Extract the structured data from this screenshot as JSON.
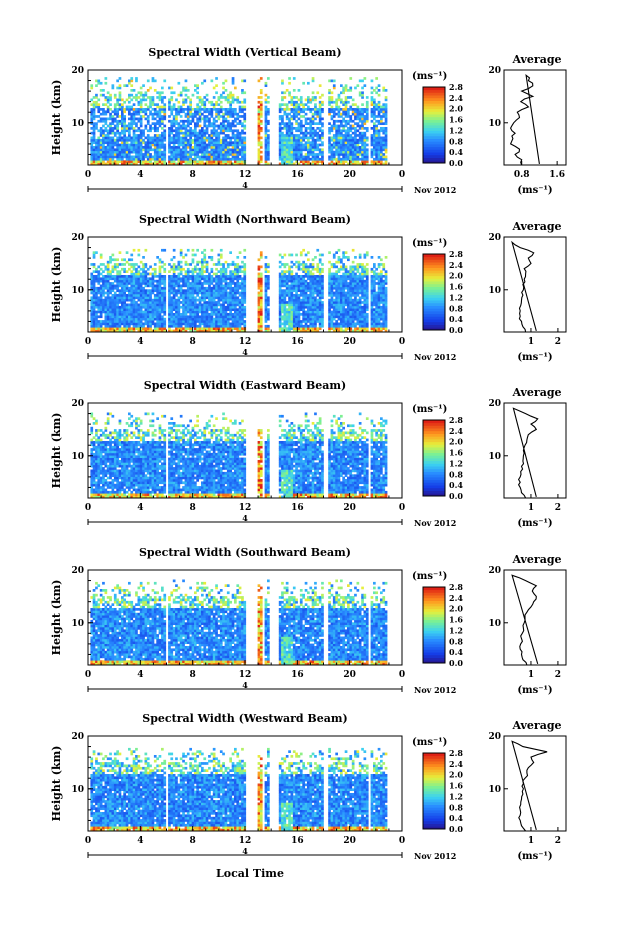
{
  "figure": {
    "xlabel": "Local Time",
    "date_label": "Nov 2012",
    "day_label": "4",
    "colorbar_unit": "(ms⁻¹)",
    "avg_title": "Average",
    "avg_unit": "(ms⁻¹)"
  },
  "chart_data": [
    {
      "type": "heatmap",
      "title": "Spectral Width (Vertical Beam)",
      "ylabel": "Height (km)",
      "xlim": [
        0,
        24
      ],
      "ylim": [
        2,
        20
      ],
      "xticks": [
        "0",
        "4",
        "8",
        "12",
        "16",
        "20",
        "0"
      ],
      "yticks": [
        "20",
        "10"
      ],
      "data_gaps_hours": [
        [
          0,
          0.1
        ],
        [
          5.8,
          5.95
        ],
        [
          11.9,
          12.9
        ],
        [
          13.3,
          13.4
        ],
        [
          13.8,
          14.4
        ],
        [
          17.9,
          18.2
        ],
        [
          21.3,
          21.5
        ],
        [
          22.7,
          24
        ]
      ],
      "top_of_data_km": 18.5,
      "colorbar": {
        "ticks": [
          "2.8",
          "2.4",
          "2.0",
          "1.6",
          "1.2",
          "0.8",
          "0.4",
          "0.0"
        ],
        "range": [
          0,
          2.8
        ]
      },
      "average": {
        "title": "Average",
        "xticks": [
          "0.8",
          "1.6"
        ],
        "xlim": [
          0.4,
          1.8
        ],
        "ylim": [
          2,
          20
        ],
        "height_km": [
          2,
          3,
          4,
          5,
          6,
          7,
          8,
          9,
          10,
          11,
          12,
          13,
          14,
          15,
          16,
          17,
          18,
          19
        ],
        "width_ms": [
          0.8,
          0.8,
          0.65,
          0.75,
          0.55,
          0.6,
          0.65,
          0.55,
          0.62,
          0.75,
          0.7,
          0.95,
          0.78,
          1.05,
          0.8,
          1.05,
          0.95,
          0.9
        ]
      }
    },
    {
      "type": "heatmap",
      "title": "Spectral Width (Northward Beam)",
      "ylabel": "Height (km)",
      "xlim": [
        0,
        24
      ],
      "ylim": [
        2,
        20
      ],
      "xticks": [
        "0",
        "4",
        "8",
        "12",
        "16",
        "20",
        "0"
      ],
      "yticks": [
        "20",
        "10"
      ],
      "data_gaps_hours": [
        [
          0,
          0.1
        ],
        [
          5.8,
          5.95
        ],
        [
          11.9,
          12.9
        ],
        [
          13.3,
          13.4
        ],
        [
          13.8,
          14.4
        ],
        [
          17.9,
          18.2
        ],
        [
          21.3,
          21.5
        ],
        [
          22.7,
          24
        ]
      ],
      "top_of_data_km": 17.5,
      "colorbar": {
        "ticks": [
          "2.8",
          "2.4",
          "2.0",
          "1.6",
          "1.2",
          "0.8",
          "0.4",
          "0.0"
        ],
        "range": [
          0,
          2.8
        ]
      },
      "average": {
        "title": "Average",
        "xticks": [
          "1",
          "2"
        ],
        "xlim": [
          0,
          2.3
        ],
        "ylim": [
          2,
          20
        ],
        "height_km": [
          2,
          3,
          4,
          5,
          6,
          7,
          8,
          9,
          10,
          11,
          12,
          13,
          14,
          15,
          16,
          17,
          18,
          19
        ],
        "width_ms": [
          0.8,
          0.7,
          0.65,
          0.6,
          0.6,
          0.62,
          0.65,
          0.7,
          0.72,
          0.7,
          0.75,
          0.8,
          0.75,
          1.0,
          0.9,
          1.1,
          0.6,
          0.3
        ]
      }
    },
    {
      "type": "heatmap",
      "title": "Spectral Width (Eastward Beam)",
      "ylabel": "Height (km)",
      "xlim": [
        0,
        24
      ],
      "ylim": [
        2,
        20
      ],
      "xticks": [
        "0",
        "4",
        "8",
        "12",
        "16",
        "20",
        "0"
      ],
      "yticks": [
        "20",
        "10"
      ],
      "data_gaps_hours": [
        [
          0,
          0.1
        ],
        [
          5.8,
          5.95
        ],
        [
          11.9,
          12.9
        ],
        [
          13.3,
          13.4
        ],
        [
          13.8,
          14.4
        ],
        [
          17.9,
          18.2
        ],
        [
          21.3,
          21.5
        ],
        [
          22.7,
          24
        ]
      ],
      "top_of_data_km": 18.0,
      "colorbar": {
        "ticks": [
          "2.8",
          "2.4",
          "2.0",
          "1.6",
          "1.2",
          "0.8",
          "0.4",
          "0.0"
        ],
        "range": [
          0,
          2.8
        ]
      },
      "average": {
        "title": "Average",
        "xticks": [
          "1",
          "2"
        ],
        "xlim": [
          0,
          2.3
        ],
        "ylim": [
          2,
          20
        ],
        "height_km": [
          2,
          3,
          4,
          5,
          6,
          7,
          8,
          9,
          10,
          11,
          12,
          13,
          14,
          15,
          16,
          17,
          18,
          19
        ],
        "width_ms": [
          0.8,
          0.65,
          0.6,
          0.6,
          0.6,
          0.62,
          0.65,
          0.7,
          0.72,
          0.72,
          0.78,
          0.85,
          0.9,
          1.2,
          1.0,
          1.25,
          0.8,
          0.35
        ]
      }
    },
    {
      "type": "heatmap",
      "title": "Spectral Width (Southward Beam)",
      "ylabel": "Height (km)",
      "xlim": [
        0,
        24
      ],
      "ylim": [
        2,
        20
      ],
      "xticks": [
        "0",
        "4",
        "8",
        "12",
        "16",
        "20",
        "0"
      ],
      "yticks": [
        "20",
        "10"
      ],
      "data_gaps_hours": [
        [
          0,
          0.1
        ],
        [
          5.8,
          5.95
        ],
        [
          11.9,
          12.9
        ],
        [
          13.3,
          13.4
        ],
        [
          13.8,
          14.4
        ],
        [
          17.9,
          18.2
        ],
        [
          21.3,
          21.5
        ],
        [
          22.7,
          24
        ]
      ],
      "top_of_data_km": 18.0,
      "colorbar": {
        "ticks": [
          "2.8",
          "2.4",
          "2.0",
          "1.6",
          "1.2",
          "0.8",
          "0.4",
          "0.0"
        ],
        "range": [
          0,
          2.8
        ]
      },
      "average": {
        "title": "Average",
        "xticks": [
          "1",
          "2"
        ],
        "xlim": [
          0,
          2.3
        ],
        "ylim": [
          2,
          20
        ],
        "height_km": [
          2,
          3,
          4,
          5,
          6,
          7,
          8,
          9,
          10,
          11,
          12,
          13,
          14,
          15,
          16,
          17,
          18,
          19
        ],
        "width_ms": [
          0.85,
          0.7,
          0.65,
          0.6,
          0.62,
          0.65,
          0.68,
          0.72,
          0.75,
          0.78,
          0.85,
          1.0,
          1.1,
          1.2,
          1.05,
          1.2,
          0.8,
          0.3
        ]
      }
    },
    {
      "type": "heatmap",
      "title": "Spectral Width (Westward Beam)",
      "ylabel": "Height (km)",
      "xlim": [
        0,
        24
      ],
      "ylim": [
        2,
        20
      ],
      "xticks": [
        "0",
        "4",
        "8",
        "12",
        "16",
        "20",
        "0"
      ],
      "yticks": [
        "20",
        "10"
      ],
      "data_gaps_hours": [
        [
          0,
          0.1
        ],
        [
          5.8,
          5.95
        ],
        [
          11.9,
          12.9
        ],
        [
          13.3,
          13.4
        ],
        [
          13.8,
          14.4
        ],
        [
          17.9,
          18.2
        ],
        [
          21.3,
          21.5
        ],
        [
          22.7,
          24
        ]
      ],
      "top_of_data_km": 17.5,
      "colorbar": {
        "ticks": [
          "2.8",
          "2.4",
          "2.0",
          "1.6",
          "1.2",
          "0.8",
          "0.4",
          "0.0"
        ],
        "range": [
          0,
          2.8
        ]
      },
      "average": {
        "title": "Average",
        "xticks": [
          "1",
          "2"
        ],
        "xlim": [
          0,
          2.3
        ],
        "ylim": [
          2,
          20
        ],
        "height_km": [
          2,
          3,
          4,
          5,
          6,
          7,
          8,
          9,
          10,
          11,
          12,
          13,
          14,
          15,
          16,
          17,
          18,
          19
        ],
        "width_ms": [
          0.8,
          0.65,
          0.6,
          0.6,
          0.6,
          0.62,
          0.65,
          0.7,
          0.72,
          0.72,
          0.78,
          0.85,
          0.9,
          1.1,
          1.0,
          1.6,
          0.7,
          0.3
        ]
      }
    }
  ]
}
